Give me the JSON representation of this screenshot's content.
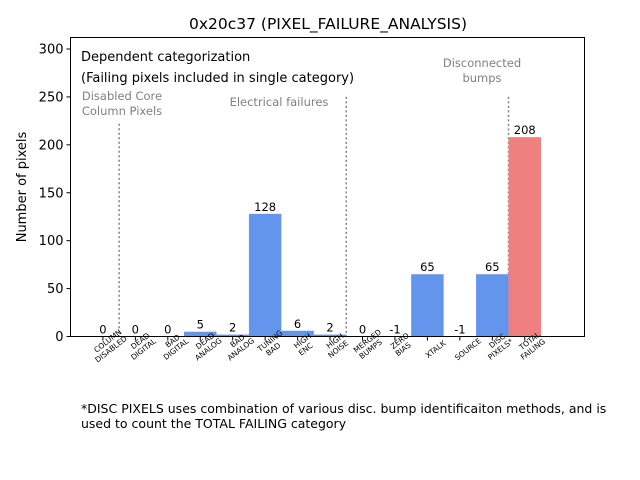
{
  "chart_data": {
    "type": "bar",
    "title": "0x20c37 (PIXEL_FAILURE_ANALYSIS)",
    "xlabel": "",
    "ylabel": "Number of pixels",
    "ylim": [
      0,
      312
    ],
    "yticks": [
      0,
      50,
      100,
      150,
      200,
      250,
      300
    ],
    "categories": [
      [
        "COLUMN",
        "DISABLED"
      ],
      [
        "DEAD",
        "DIGITAL"
      ],
      [
        "BAD",
        "DIGITAL"
      ],
      [
        "DEAD",
        "ANALOG"
      ],
      [
        "BAD",
        "ANALOG"
      ],
      [
        "TUNING",
        "BAD"
      ],
      [
        "HIGH",
        "ENC"
      ],
      [
        "HIGH",
        "NOISE"
      ],
      [
        "MERGED",
        "BUMPS"
      ],
      [
        "ZERO",
        "BIAS"
      ],
      [
        "XTALK"
      ],
      [
        "SOURCE"
      ],
      [
        "DISC",
        "PIXELS*"
      ],
      [
        "TOTAL",
        "FAILING"
      ]
    ],
    "values": [
      0,
      0,
      0,
      5,
      2,
      128,
      6,
      2,
      0,
      -1,
      65,
      -1,
      65,
      208
    ],
    "value_labels": [
      "0",
      "0",
      "0",
      "5",
      "2",
      "128",
      "6",
      "2",
      "0",
      "-1",
      "65",
      "-1",
      "65",
      "208"
    ],
    "colors": {
      "default": "#6495ed",
      "total": "#f08080",
      "annotation": "#808080",
      "divider": "#808080"
    },
    "dividers": [
      {
        "after_index": 0,
        "top_value": 222
      },
      {
        "after_index": 7,
        "top_value": 250
      },
      {
        "after_index": 12,
        "top_value": 250
      }
    ],
    "box_text": {
      "line1": "Dependent categorization",
      "line2": "(Failing pixels included in single category)"
    },
    "group_labels": [
      {
        "lines": [
          "Disabled Core",
          "Column Pixels"
        ]
      },
      {
        "lines": [
          "Electrical failures"
        ]
      },
      {
        "lines": [
          "Disconnected",
          "bumps"
        ]
      }
    ]
  },
  "footnote": "*DISC PIXELS uses combination of various disc. bump identificaiton methods, and is used to count the TOTAL FAILING category"
}
